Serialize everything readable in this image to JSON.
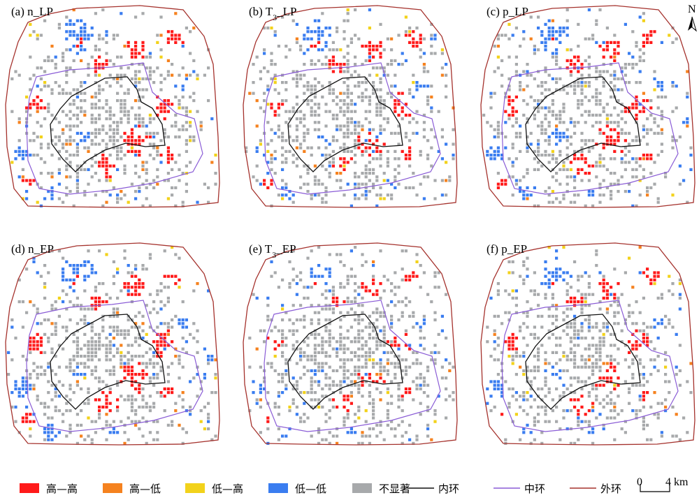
{
  "panels": [
    {
      "prefix": "(a) n",
      "suffix": "_LP",
      "sub": ""
    },
    {
      "prefix": "(b) T",
      "suffix": "_LP",
      "sub": "3"
    },
    {
      "prefix": "(c) p",
      "suffix": "_LP",
      "sub": ""
    },
    {
      "prefix": "(d) n",
      "suffix": "_EP",
      "sub": ""
    },
    {
      "prefix": "(e) T",
      "suffix": "_EP",
      "sub": "3"
    },
    {
      "prefix": "(f) p",
      "suffix": "_EP",
      "sub": ""
    }
  ],
  "north": "N",
  "legend": {
    "categories": [
      {
        "label": "高—高",
        "color": "#ff1a1a"
      },
      {
        "label": "高—低",
        "color": "#f5821f"
      },
      {
        "label": "低—高",
        "color": "#f2d21b"
      },
      {
        "label": "低—低",
        "color": "#3a7df0"
      },
      {
        "label": "不显著",
        "color": "#a7a9ab"
      }
    ],
    "lines": [
      {
        "label": "内环",
        "color": "#111111"
      },
      {
        "label": "中环",
        "color": "#8a5cd6"
      },
      {
        "label": "外环",
        "color": "#a5322d"
      }
    ]
  },
  "scale": {
    "start": "0",
    "end": "4 km"
  }
}
